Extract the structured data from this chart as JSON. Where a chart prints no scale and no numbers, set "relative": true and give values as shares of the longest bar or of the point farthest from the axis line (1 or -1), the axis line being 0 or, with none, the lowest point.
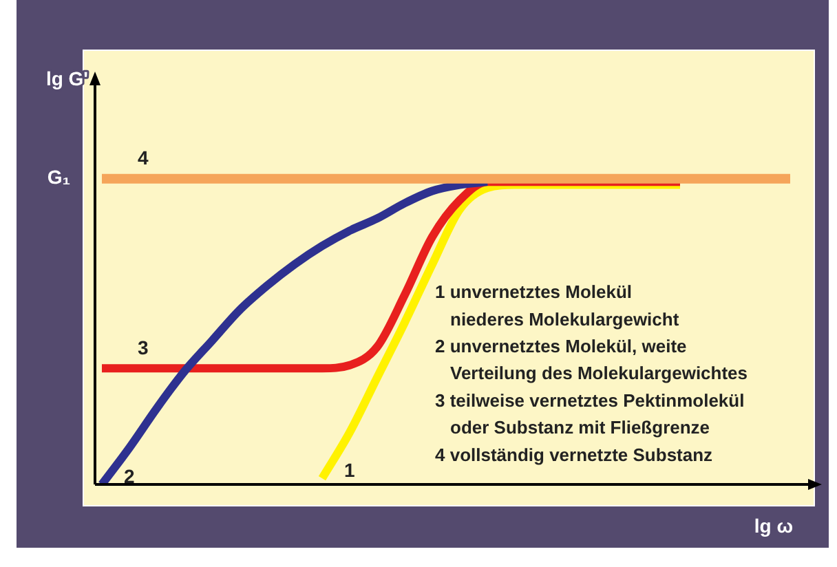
{
  "chart_data": {
    "type": "line",
    "relative": true,
    "xlabel": "lg ω",
    "ylabel": "lg G'",
    "legend": false,
    "grid": false,
    "marker": "none",
    "line_style": "solid",
    "categories": [
      null,
      null,
      null,
      null,
      null,
      null,
      null,
      null,
      null,
      null,
      null,
      null,
      null,
      null,
      null,
      null,
      null,
      null,
      null,
      null,
      null,
      null,
      null,
      null,
      null,
      null
    ],
    "series": [
      {
        "name": "4",
        "color": "#f5a55a",
        "values": [
          1,
          1,
          1,
          1,
          1,
          1,
          1,
          1,
          1,
          1,
          1,
          1,
          1,
          1,
          1,
          1,
          1,
          1,
          1,
          1,
          1,
          1,
          1,
          1,
          1,
          1
        ]
      },
      {
        "name": "2",
        "color": "#2e3190",
        "values": [
          0.0,
          0.12,
          0.25,
          0.37,
          0.47,
          0.57,
          0.65,
          0.72,
          0.78,
          0.83,
          0.87,
          0.92,
          0.96,
          0.98,
          0.99,
          null,
          null,
          null,
          null,
          null,
          null,
          null,
          null,
          null,
          null,
          null
        ]
      },
      {
        "name": "3",
        "color": "#e8201e",
        "values": [
          0.38,
          0.38,
          0.38,
          0.38,
          0.38,
          0.38,
          0.38,
          0.38,
          0.38,
          0.39,
          0.45,
          0.62,
          0.81,
          0.93,
          0.99,
          0.99,
          0.99,
          0.99,
          0.99,
          0.99,
          0.99,
          0.99,
          null,
          null,
          null,
          null
        ]
      },
      {
        "name": "1",
        "color": "#fff200",
        "values": [
          null,
          null,
          null,
          null,
          null,
          null,
          null,
          null,
          0.02,
          0.17,
          0.35,
          0.53,
          0.72,
          0.9,
          0.97,
          0.98,
          0.98,
          0.98,
          0.98,
          0.98,
          0.98,
          0.98,
          null,
          null,
          null,
          null
        ]
      }
    ],
    "annotations": [
      "G₁",
      "1 unvernetztes Molekül\nniederes Molekulargewicht",
      "2 unvernetztes Molekül, weite\nVerteilung des Molekulargewichtes",
      "3 teilweise vernetztes Pektinmolekül\noder Substanz mit Fließgrenze",
      "4 vollständig vernetzte Substanz"
    ]
  }
}
